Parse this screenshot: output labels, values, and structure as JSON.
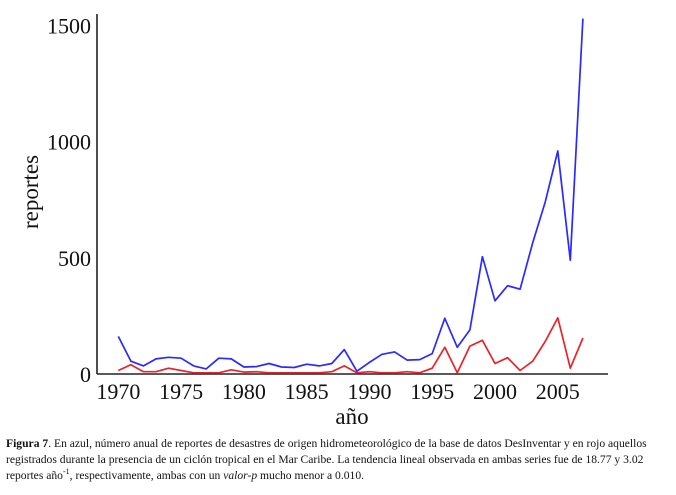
{
  "chart_data": {
    "type": "line",
    "xlabel": "año",
    "ylabel": "reportes",
    "xlim": [
      1968.3,
      2009
    ],
    "ylim": [
      0,
      1550
    ],
    "xticks": [
      1970,
      1975,
      1980,
      1985,
      1990,
      1995,
      2000,
      2005
    ],
    "yticks": [
      0,
      500,
      1000,
      1500
    ],
    "x": [
      1970,
      1971,
      1972,
      1973,
      1974,
      1975,
      1976,
      1977,
      1978,
      1979,
      1980,
      1981,
      1982,
      1983,
      1984,
      1985,
      1986,
      1987,
      1988,
      1989,
      1990,
      1991,
      1992,
      1993,
      1994,
      1995,
      1996,
      1997,
      1998,
      1999,
      2000,
      2001,
      2002,
      2003,
      2004,
      2005,
      2006,
      2007
    ],
    "series": [
      {
        "color": "#2a2aff",
        "values": [
          162,
          55,
          35,
          65,
          72,
          68,
          35,
          22,
          68,
          65,
          30,
          32,
          45,
          30,
          28,
          42,
          35,
          45,
          105,
          12,
          50,
          85,
          95,
          60,
          62,
          88,
          240,
          115,
          190,
          505,
          315,
          380,
          365,
          565,
          740,
          960,
          490,
          1530
        ]
      },
      {
        "color": "#e8242a",
        "values": [
          15,
          40,
          10,
          10,
          25,
          15,
          5,
          5,
          5,
          18,
          8,
          10,
          5,
          5,
          5,
          5,
          5,
          10,
          35,
          5,
          10,
          5,
          5,
          10,
          5,
          25,
          115,
          5,
          120,
          145,
          45,
          70,
          15,
          55,
          140,
          242,
          25,
          155
        ]
      }
    ]
  },
  "caption": {
    "label": "Figura 7",
    "text_a": ". En azul, número anual de reportes de desastres de origen hidrometeorológico de la base de datos DesInventar y en rojo aquellos registrados durante la presencia de un ciclón tropical en el Mar Caribe. La tendencia lineal observada en ambas series fue de 18.77 y 3.02 reportes año",
    "sup": "-1",
    "text_b": ", respectivamente, ambas con un ",
    "italic": "valor-p",
    "text_c": " mucho menor a 0.010."
  }
}
